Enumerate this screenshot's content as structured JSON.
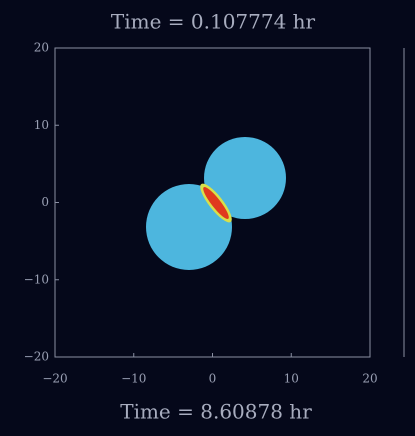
{
  "chart_data": {
    "type": "field",
    "title": "Time = 0.107774 hr",
    "subtitle": "Time = 8.60878 hr",
    "xlim": [
      -20,
      20
    ],
    "ylim": [
      -20,
      20
    ],
    "xticks": [
      {
        "value": -20,
        "label": "−20"
      },
      {
        "value": -10,
        "label": "−10"
      },
      0,
      10,
      20
    ],
    "yticks": [
      {
        "value": -20,
        "label": "−20"
      },
      {
        "value": -10,
        "label": "−10"
      },
      0,
      10,
      20
    ]
  }
}
